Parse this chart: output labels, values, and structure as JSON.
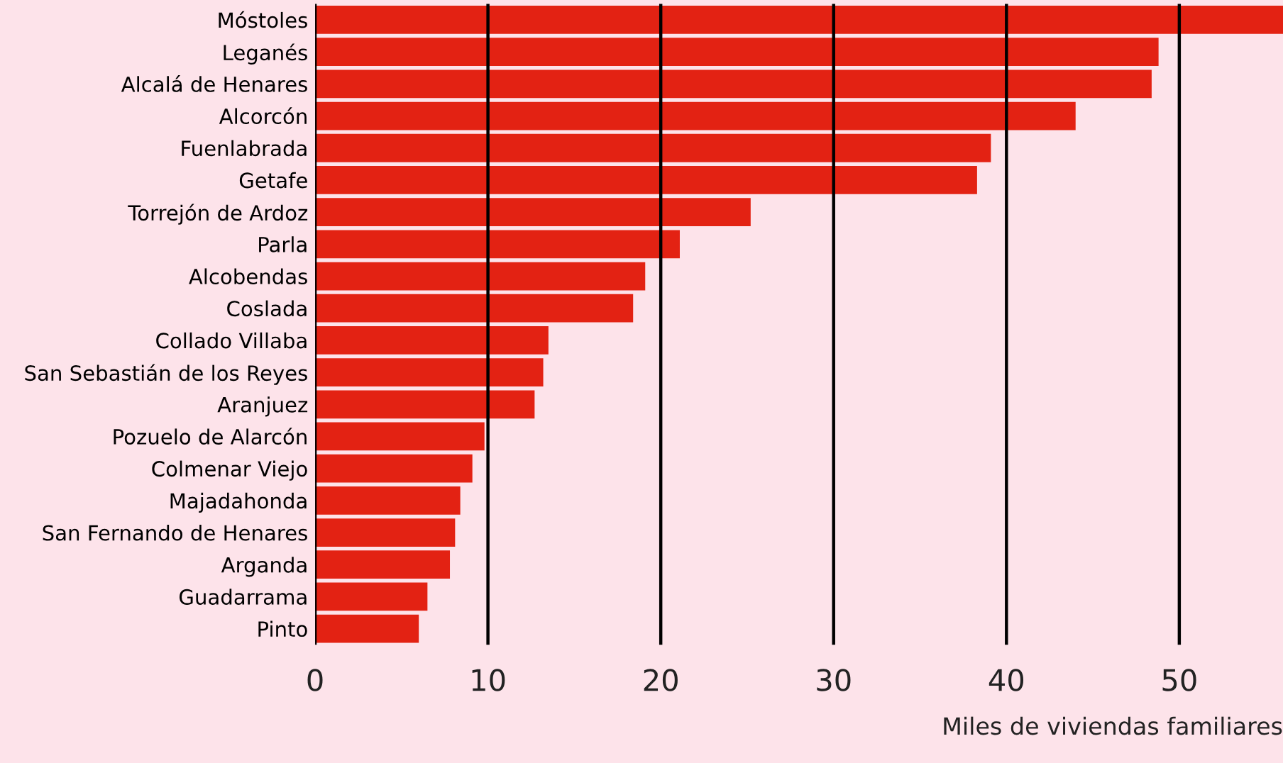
{
  "chart_data": {
    "type": "bar",
    "orientation": "horizontal",
    "xlabel": "Miles de viviendas familiares",
    "categories": [
      "Móstoles",
      "Leganés",
      "Alcalá de Henares",
      "Alcorcón",
      "Fuenlabrada",
      "Getafe",
      "Torrejón de Ardoz",
      "Parla",
      "Alcobendas",
      "Coslada",
      "Collado Villaba",
      "San Sebastián de los Reyes",
      "Aranjuez",
      "Pozuelo de Alarcón",
      "Colmenar Viejo",
      "Majadahonda",
      "San Fernando de Henares",
      "Arganda",
      "Guadarrama",
      "Pinto"
    ],
    "values": [
      56,
      48.8,
      48.4,
      44.0,
      39.1,
      38.3,
      25.2,
      21.1,
      19.1,
      18.4,
      13.5,
      13.2,
      12.7,
      9.8,
      9.1,
      8.4,
      8.1,
      7.8,
      6.5,
      6.0
    ],
    "color": "#e32213",
    "xlim": [
      0,
      56
    ],
    "xticks": [
      0,
      10,
      20,
      30,
      40,
      50
    ],
    "grid": "x"
  }
}
